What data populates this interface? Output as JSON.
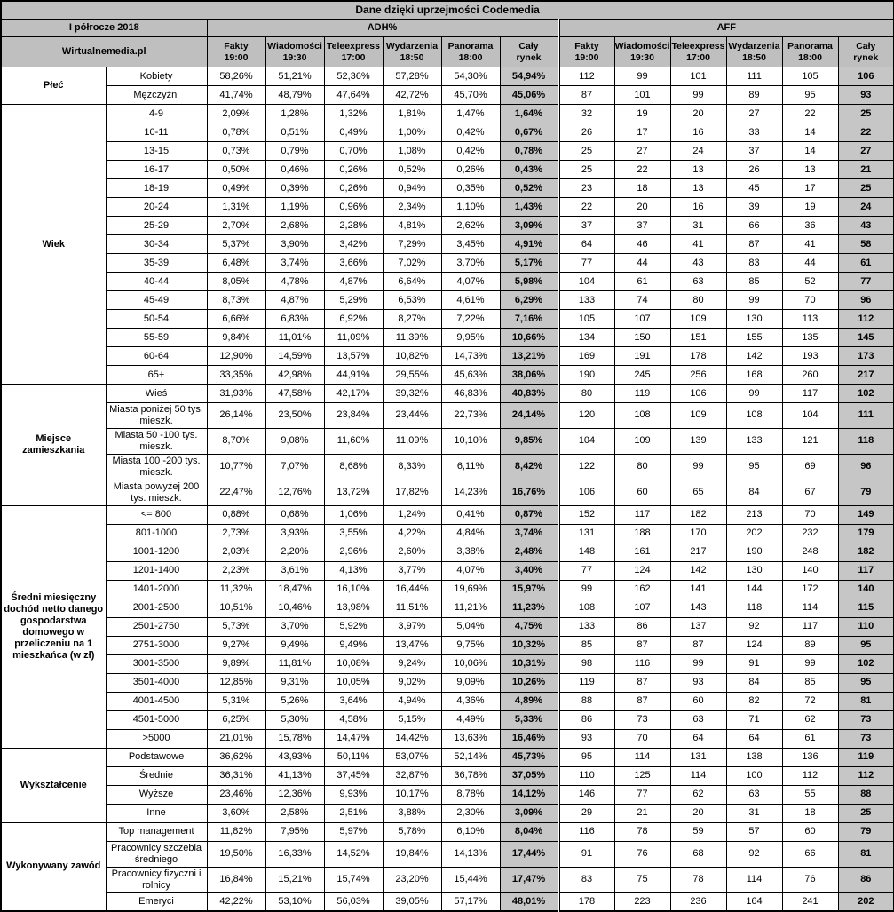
{
  "chart_data": {
    "type": "table",
    "title": "Dane dzięki uprzejmości Codemedia",
    "period": "I półrocze 2018",
    "source": "Wirtualnemedia.pl",
    "metric_groups": [
      "ADH%",
      "AFF"
    ],
    "colors": {
      "header_bg": "#bfbfbf",
      "total_col_bg": "#c6c6c6",
      "border": "#000000",
      "page_bg": "#ffffff"
    },
    "columns": [
      {
        "key": "fakty",
        "station": "Fakty",
        "time": "19:00"
      },
      {
        "key": "wiadomosci",
        "station": "Wiadomości",
        "time": "19:30"
      },
      {
        "key": "teleexpress",
        "station": "Teleexpress",
        "time": "17:00"
      },
      {
        "key": "wydarzenia",
        "station": "Wydarzenia",
        "time": "18:50"
      },
      {
        "key": "panorama",
        "station": "Panorama",
        "time": "18:00"
      },
      {
        "key": "caly-rynek",
        "station": "Cały",
        "time": "rynek"
      }
    ],
    "row_groups": [
      {
        "category": "Płeć",
        "rows": [
          {
            "label": "Kobiety",
            "adh": [
              "58,26%",
              "51,21%",
              "52,36%",
              "57,28%",
              "54,30%",
              "54,94%"
            ],
            "aff": [
              "112",
              "99",
              "101",
              "111",
              "105",
              "106"
            ]
          },
          {
            "label": "Mężczyźni",
            "adh": [
              "41,74%",
              "48,79%",
              "47,64%",
              "42,72%",
              "45,70%",
              "45,06%"
            ],
            "aff": [
              "87",
              "101",
              "99",
              "89",
              "95",
              "93"
            ]
          }
        ]
      },
      {
        "category": "Wiek",
        "rows": [
          {
            "label": "4-9",
            "adh": [
              "2,09%",
              "1,28%",
              "1,32%",
              "1,81%",
              "1,47%",
              "1,64%"
            ],
            "aff": [
              "32",
              "19",
              "20",
              "27",
              "22",
              "25"
            ]
          },
          {
            "label": "10-11",
            "adh": [
              "0,78%",
              "0,51%",
              "0,49%",
              "1,00%",
              "0,42%",
              "0,67%"
            ],
            "aff": [
              "26",
              "17",
              "16",
              "33",
              "14",
              "22"
            ]
          },
          {
            "label": "13-15",
            "adh": [
              "0,73%",
              "0,79%",
              "0,70%",
              "1,08%",
              "0,42%",
              "0,78%"
            ],
            "aff": [
              "25",
              "27",
              "24",
              "37",
              "14",
              "27"
            ]
          },
          {
            "label": "16-17",
            "adh": [
              "0,50%",
              "0,46%",
              "0,26%",
              "0,52%",
              "0,26%",
              "0,43%"
            ],
            "aff": [
              "25",
              "22",
              "13",
              "26",
              "13",
              "21"
            ]
          },
          {
            "label": "18-19",
            "adh": [
              "0,49%",
              "0,39%",
              "0,26%",
              "0,94%",
              "0,35%",
              "0,52%"
            ],
            "aff": [
              "23",
              "18",
              "13",
              "45",
              "17",
              "25"
            ]
          },
          {
            "label": "20-24",
            "adh": [
              "1,31%",
              "1,19%",
              "0,96%",
              "2,34%",
              "1,10%",
              "1,43%"
            ],
            "aff": [
              "22",
              "20",
              "16",
              "39",
              "19",
              "24"
            ]
          },
          {
            "label": "25-29",
            "adh": [
              "2,70%",
              "2,68%",
              "2,28%",
              "4,81%",
              "2,62%",
              "3,09%"
            ],
            "aff": [
              "37",
              "37",
              "31",
              "66",
              "36",
              "43"
            ]
          },
          {
            "label": "30-34",
            "adh": [
              "5,37%",
              "3,90%",
              "3,42%",
              "7,29%",
              "3,45%",
              "4,91%"
            ],
            "aff": [
              "64",
              "46",
              "41",
              "87",
              "41",
              "58"
            ]
          },
          {
            "label": "35-39",
            "adh": [
              "6,48%",
              "3,74%",
              "3,66%",
              "7,02%",
              "3,70%",
              "5,17%"
            ],
            "aff": [
              "77",
              "44",
              "43",
              "83",
              "44",
              "61"
            ]
          },
          {
            "label": "40-44",
            "adh": [
              "8,05%",
              "4,78%",
              "4,87%",
              "6,64%",
              "4,07%",
              "5,98%"
            ],
            "aff": [
              "104",
              "61",
              "63",
              "85",
              "52",
              "77"
            ]
          },
          {
            "label": "45-49",
            "adh": [
              "8,73%",
              "4,87%",
              "5,29%",
              "6,53%",
              "4,61%",
              "6,29%"
            ],
            "aff": [
              "133",
              "74",
              "80",
              "99",
              "70",
              "96"
            ]
          },
          {
            "label": "50-54",
            "adh": [
              "6,66%",
              "6,83%",
              "6,92%",
              "8,27%",
              "7,22%",
              "7,16%"
            ],
            "aff": [
              "105",
              "107",
              "109",
              "130",
              "113",
              "112"
            ]
          },
          {
            "label": "55-59",
            "adh": [
              "9,84%",
              "11,01%",
              "11,09%",
              "11,39%",
              "9,95%",
              "10,66%"
            ],
            "aff": [
              "134",
              "150",
              "151",
              "155",
              "135",
              "145"
            ]
          },
          {
            "label": "60-64",
            "adh": [
              "12,90%",
              "14,59%",
              "13,57%",
              "10,82%",
              "14,73%",
              "13,21%"
            ],
            "aff": [
              "169",
              "191",
              "178",
              "142",
              "193",
              "173"
            ]
          },
          {
            "label": "65+",
            "adh": [
              "33,35%",
              "42,98%",
              "44,91%",
              "29,55%",
              "45,63%",
              "38,06%"
            ],
            "aff": [
              "190",
              "245",
              "256",
              "168",
              "260",
              "217"
            ]
          }
        ]
      },
      {
        "category": "Miejsce zamieszkania",
        "rows": [
          {
            "label": "Wieś",
            "adh": [
              "31,93%",
              "47,58%",
              "42,17%",
              "39,32%",
              "46,83%",
              "40,83%"
            ],
            "aff": [
              "80",
              "119",
              "106",
              "99",
              "117",
              "102"
            ]
          },
          {
            "label": "Miasta poniżej 50 tys. mieszk.",
            "adh": [
              "26,14%",
              "23,50%",
              "23,84%",
              "23,44%",
              "22,73%",
              "24,14%"
            ],
            "aff": [
              "120",
              "108",
              "109",
              "108",
              "104",
              "111"
            ]
          },
          {
            "label": "Miasta 50 -100 tys. mieszk.",
            "adh": [
              "8,70%",
              "9,08%",
              "11,60%",
              "11,09%",
              "10,10%",
              "9,85%"
            ],
            "aff": [
              "104",
              "109",
              "139",
              "133",
              "121",
              "118"
            ]
          },
          {
            "label": "Miasta 100 -200 tys. mieszk.",
            "adh": [
              "10,77%",
              "7,07%",
              "8,68%",
              "8,33%",
              "6,11%",
              "8,42%"
            ],
            "aff": [
              "122",
              "80",
              "99",
              "95",
              "69",
              "96"
            ]
          },
          {
            "label": "Miasta powyżej 200 tys. mieszk.",
            "adh": [
              "22,47%",
              "12,76%",
              "13,72%",
              "17,82%",
              "14,23%",
              "16,76%"
            ],
            "aff": [
              "106",
              "60",
              "65",
              "84",
              "67",
              "79"
            ]
          }
        ]
      },
      {
        "category": "Średni miesięczny dochód netto danego gospodarstwa domowego w przeliczeniu na 1 mieszkańca (w zł)",
        "rows": [
          {
            "label": "<= 800",
            "adh": [
              "0,88%",
              "0,68%",
              "1,06%",
              "1,24%",
              "0,41%",
              "0,87%"
            ],
            "aff": [
              "152",
              "117",
              "182",
              "213",
              "70",
              "149"
            ]
          },
          {
            "label": "801-1000",
            "adh": [
              "2,73%",
              "3,93%",
              "3,55%",
              "4,22%",
              "4,84%",
              "3,74%"
            ],
            "aff": [
              "131",
              "188",
              "170",
              "202",
              "232",
              "179"
            ]
          },
          {
            "label": "1001-1200",
            "adh": [
              "2,03%",
              "2,20%",
              "2,96%",
              "2,60%",
              "3,38%",
              "2,48%"
            ],
            "aff": [
              "148",
              "161",
              "217",
              "190",
              "248",
              "182"
            ]
          },
          {
            "label": "1201-1400",
            "adh": [
              "2,23%",
              "3,61%",
              "4,13%",
              "3,77%",
              "4,07%",
              "3,40%"
            ],
            "aff": [
              "77",
              "124",
              "142",
              "130",
              "140",
              "117"
            ]
          },
          {
            "label": "1401-2000",
            "adh": [
              "11,32%",
              "18,47%",
              "16,10%",
              "16,44%",
              "19,69%",
              "15,97%"
            ],
            "aff": [
              "99",
              "162",
              "141",
              "144",
              "172",
              "140"
            ]
          },
          {
            "label": "2001-2500",
            "adh": [
              "10,51%",
              "10,46%",
              "13,98%",
              "11,51%",
              "11,21%",
              "11,23%"
            ],
            "aff": [
              "108",
              "107",
              "143",
              "118",
              "114",
              "115"
            ]
          },
          {
            "label": "2501-2750",
            "adh": [
              "5,73%",
              "3,70%",
              "5,92%",
              "3,97%",
              "5,04%",
              "4,75%"
            ],
            "aff": [
              "133",
              "86",
              "137",
              "92",
              "117",
              "110"
            ]
          },
          {
            "label": "2751-3000",
            "adh": [
              "9,27%",
              "9,49%",
              "9,49%",
              "13,47%",
              "9,75%",
              "10,32%"
            ],
            "aff": [
              "85",
              "87",
              "87",
              "124",
              "89",
              "95"
            ]
          },
          {
            "label": "3001-3500",
            "adh": [
              "9,89%",
              "11,81%",
              "10,08%",
              "9,24%",
              "10,06%",
              "10,31%"
            ],
            "aff": [
              "98",
              "116",
              "99",
              "91",
              "99",
              "102"
            ]
          },
          {
            "label": "3501-4000",
            "adh": [
              "12,85%",
              "9,31%",
              "10,05%",
              "9,02%",
              "9,09%",
              "10,26%"
            ],
            "aff": [
              "119",
              "87",
              "93",
              "84",
              "85",
              "95"
            ]
          },
          {
            "label": "4001-4500",
            "adh": [
              "5,31%",
              "5,26%",
              "3,64%",
              "4,94%",
              "4,36%",
              "4,89%"
            ],
            "aff": [
              "88",
              "87",
              "60",
              "82",
              "72",
              "81"
            ]
          },
          {
            "label": "4501-5000",
            "adh": [
              "6,25%",
              "5,30%",
              "4,58%",
              "5,15%",
              "4,49%",
              "5,33%"
            ],
            "aff": [
              "86",
              "73",
              "63",
              "71",
              "62",
              "73"
            ]
          },
          {
            "label": ">5000",
            "adh": [
              "21,01%",
              "15,78%",
              "14,47%",
              "14,42%",
              "13,63%",
              "16,46%"
            ],
            "aff": [
              "93",
              "70",
              "64",
              "64",
              "61",
              "73"
            ]
          }
        ]
      },
      {
        "category": "Wykształcenie",
        "rows": [
          {
            "label": "Podstawowe",
            "adh": [
              "36,62%",
              "43,93%",
              "50,11%",
              "53,07%",
              "52,14%",
              "45,73%"
            ],
            "aff": [
              "95",
              "114",
              "131",
              "138",
              "136",
              "119"
            ]
          },
          {
            "label": "Średnie",
            "adh": [
              "36,31%",
              "41,13%",
              "37,45%",
              "32,87%",
              "36,78%",
              "37,05%"
            ],
            "aff": [
              "110",
              "125",
              "114",
              "100",
              "112",
              "112"
            ]
          },
          {
            "label": "Wyższe",
            "adh": [
              "23,46%",
              "12,36%",
              "9,93%",
              "10,17%",
              "8,78%",
              "14,12%"
            ],
            "aff": [
              "146",
              "77",
              "62",
              "63",
              "55",
              "88"
            ]
          },
          {
            "label": "Inne",
            "adh": [
              "3,60%",
              "2,58%",
              "2,51%",
              "3,88%",
              "2,30%",
              "3,09%"
            ],
            "aff": [
              "29",
              "21",
              "20",
              "31",
              "18",
              "25"
            ]
          }
        ]
      },
      {
        "category": "Wykonywany zawód",
        "rows": [
          {
            "label": "Top management",
            "adh": [
              "11,82%",
              "7,95%",
              "5,97%",
              "5,78%",
              "6,10%",
              "8,04%"
            ],
            "aff": [
              "116",
              "78",
              "59",
              "57",
              "60",
              "79"
            ]
          },
          {
            "label": "Pracownicy szczebla średniego",
            "adh": [
              "19,50%",
              "16,33%",
              "14,52%",
              "19,84%",
              "14,13%",
              "17,44%"
            ],
            "aff": [
              "91",
              "76",
              "68",
              "92",
              "66",
              "81"
            ]
          },
          {
            "label": "Pracownicy fizyczni i rolnicy",
            "adh": [
              "16,84%",
              "15,21%",
              "15,74%",
              "23,20%",
              "15,44%",
              "17,47%"
            ],
            "aff": [
              "83",
              "75",
              "78",
              "114",
              "76",
              "86"
            ]
          },
          {
            "label": "Emeryci",
            "adh": [
              "42,22%",
              "53,10%",
              "56,03%",
              "39,05%",
              "57,17%",
              "48,01%"
            ],
            "aff": [
              "178",
              "223",
              "236",
              "164",
              "241",
              "202"
            ]
          }
        ]
      }
    ]
  }
}
